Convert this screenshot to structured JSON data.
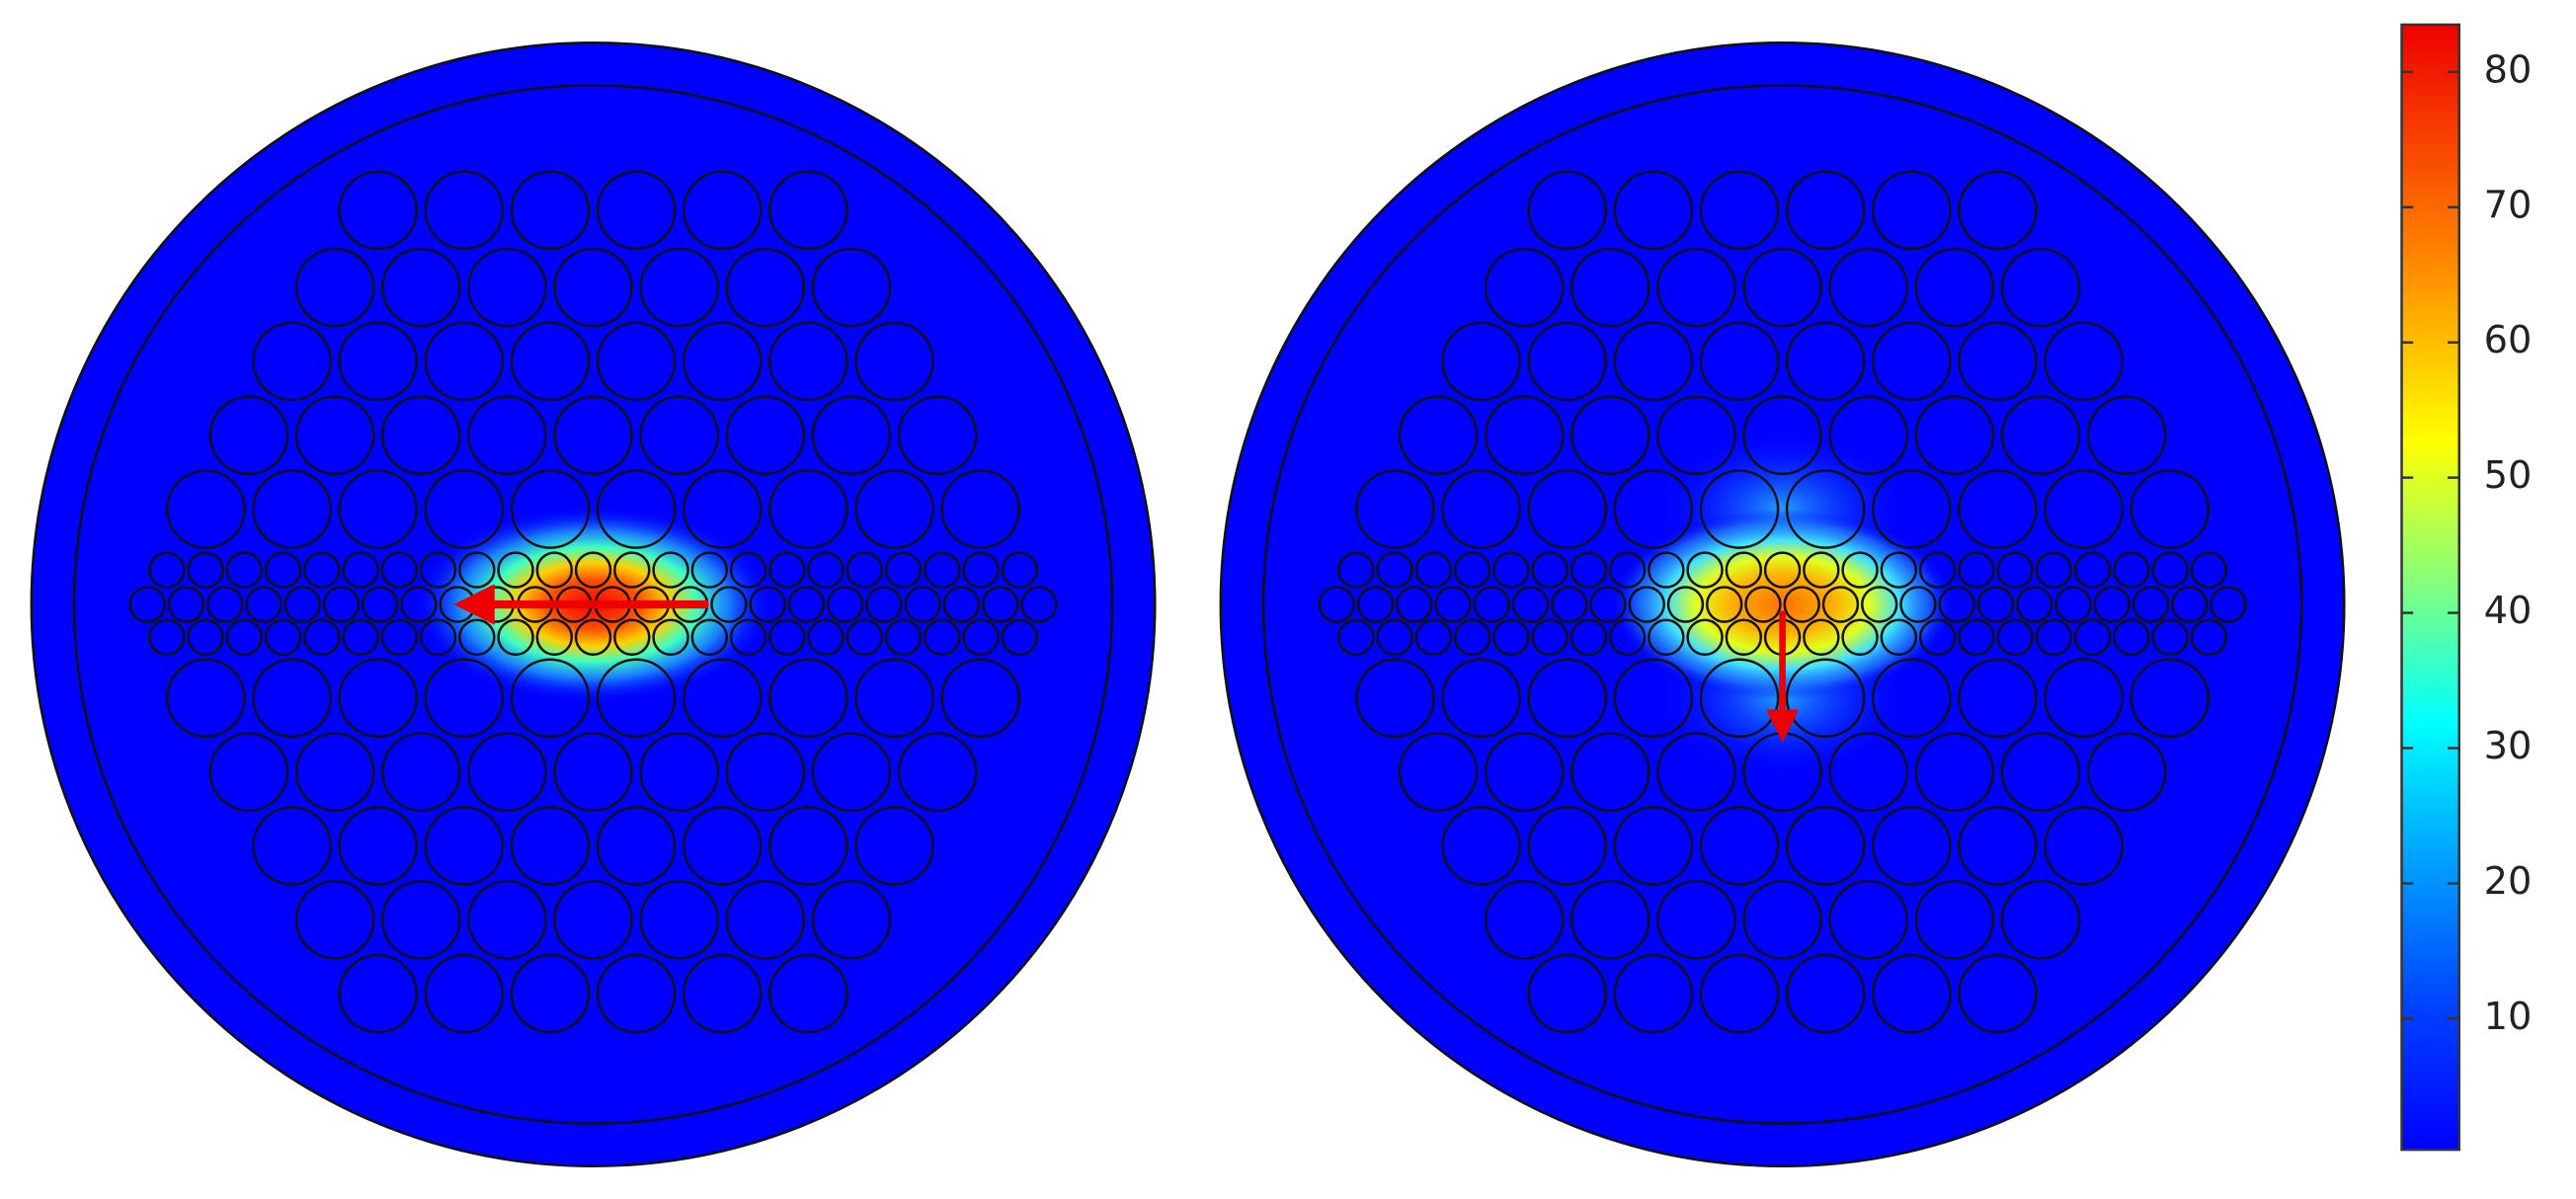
{
  "colorbar": {
    "range": [
      0.3,
      83.5
    ],
    "ticks": [
      10,
      20,
      30,
      40,
      50,
      60,
      70,
      80
    ]
  }
}
